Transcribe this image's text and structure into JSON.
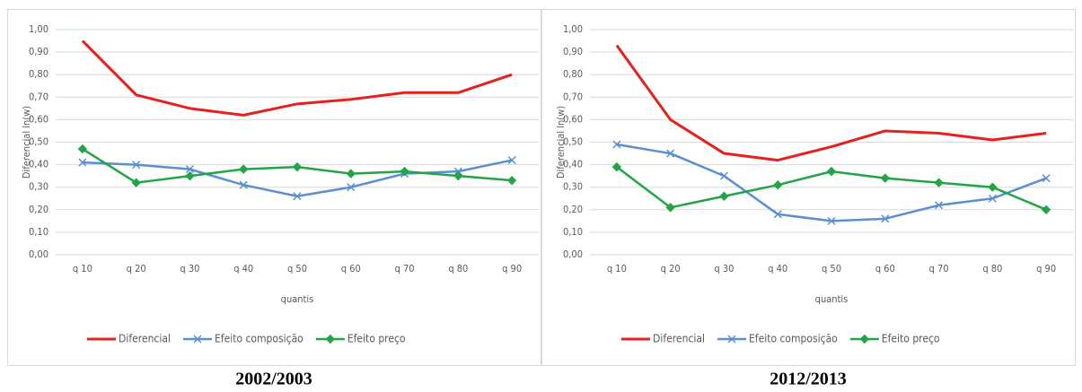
{
  "chart_data": [
    {
      "type": "line",
      "title": "2002/2003",
      "y_label": "Diferencial ln(w)",
      "x_label": "quantis",
      "categories": [
        "q 10",
        "q 20",
        "q 30",
        "q 40",
        "q 50",
        "q 60",
        "q 70",
        "q 80",
        "q 90"
      ],
      "ylim": [
        0,
        1
      ],
      "yticks": [
        {
          "value": 0,
          "label": "0,00"
        },
        {
          "value": 0.1,
          "label": "0,10"
        },
        {
          "value": 0.2,
          "label": "0,20"
        },
        {
          "value": 0.3,
          "label": "0,30"
        },
        {
          "value": 0.4,
          "label": "0,40"
        },
        {
          "value": 0.5,
          "label": "0,50"
        },
        {
          "value": 0.6,
          "label": "0,60"
        },
        {
          "value": 0.7,
          "label": "0,70"
        },
        {
          "value": 0.8,
          "label": "0,80"
        },
        {
          "value": 0.9,
          "label": "0,90"
        },
        {
          "value": 1,
          "label": "1,00"
        }
      ],
      "grid": true,
      "legend": "bottom",
      "series": [
        {
          "name": "Diferencial",
          "color": "#e5201d",
          "marker": "none",
          "values": [
            0.95,
            0.71,
            0.65,
            0.62,
            0.67,
            0.69,
            0.72,
            0.72,
            0.8
          ]
        },
        {
          "name": "Efeito composição",
          "color": "#5b8fd0",
          "marker": "x",
          "values": [
            0.41,
            0.4,
            0.38,
            0.31,
            0.26,
            0.3,
            0.36,
            0.37,
            0.42
          ]
        },
        {
          "name": "Efeito preço",
          "color": "#22a447",
          "marker": "diamond",
          "values": [
            0.47,
            0.32,
            0.35,
            0.38,
            0.39,
            0.36,
            0.37,
            0.35,
            0.33
          ]
        }
      ]
    },
    {
      "type": "line",
      "title": "2012/2013",
      "y_label": "Diferencial ln(w)",
      "x_label": "quantis",
      "categories": [
        "q 10",
        "q 20",
        "q 30",
        "q 40",
        "q 50",
        "q 60",
        "q 70",
        "q 80",
        "q 90"
      ],
      "ylim": [
        0,
        1
      ],
      "yticks": [
        {
          "value": 0,
          "label": "0,00"
        },
        {
          "value": 0.1,
          "label": "0,10"
        },
        {
          "value": 0.2,
          "label": "0,20"
        },
        {
          "value": 0.3,
          "label": "0,30"
        },
        {
          "value": 0.4,
          "label": "0,40"
        },
        {
          "value": 0.5,
          "label": "0,50"
        },
        {
          "value": 0.6,
          "label": "0,60"
        },
        {
          "value": 0.7,
          "label": "0,70"
        },
        {
          "value": 0.8,
          "label": "0,80"
        },
        {
          "value": 0.9,
          "label": "0,90"
        },
        {
          "value": 1,
          "label": "1,00"
        }
      ],
      "grid": true,
      "legend": "bottom",
      "series": [
        {
          "name": "Diferencial",
          "color": "#e5201d",
          "marker": "none",
          "values": [
            0.93,
            0.6,
            0.45,
            0.42,
            0.48,
            0.55,
            0.54,
            0.51,
            0.54
          ]
        },
        {
          "name": "Efeito composição",
          "color": "#5b8fd0",
          "marker": "x",
          "values": [
            0.49,
            0.45,
            0.35,
            0.18,
            0.15,
            0.16,
            0.22,
            0.25,
            0.34
          ]
        },
        {
          "name": "Efeito preço",
          "color": "#22a447",
          "marker": "diamond",
          "values": [
            0.39,
            0.21,
            0.26,
            0.31,
            0.37,
            0.34,
            0.32,
            0.3,
            0.2
          ]
        }
      ]
    }
  ]
}
